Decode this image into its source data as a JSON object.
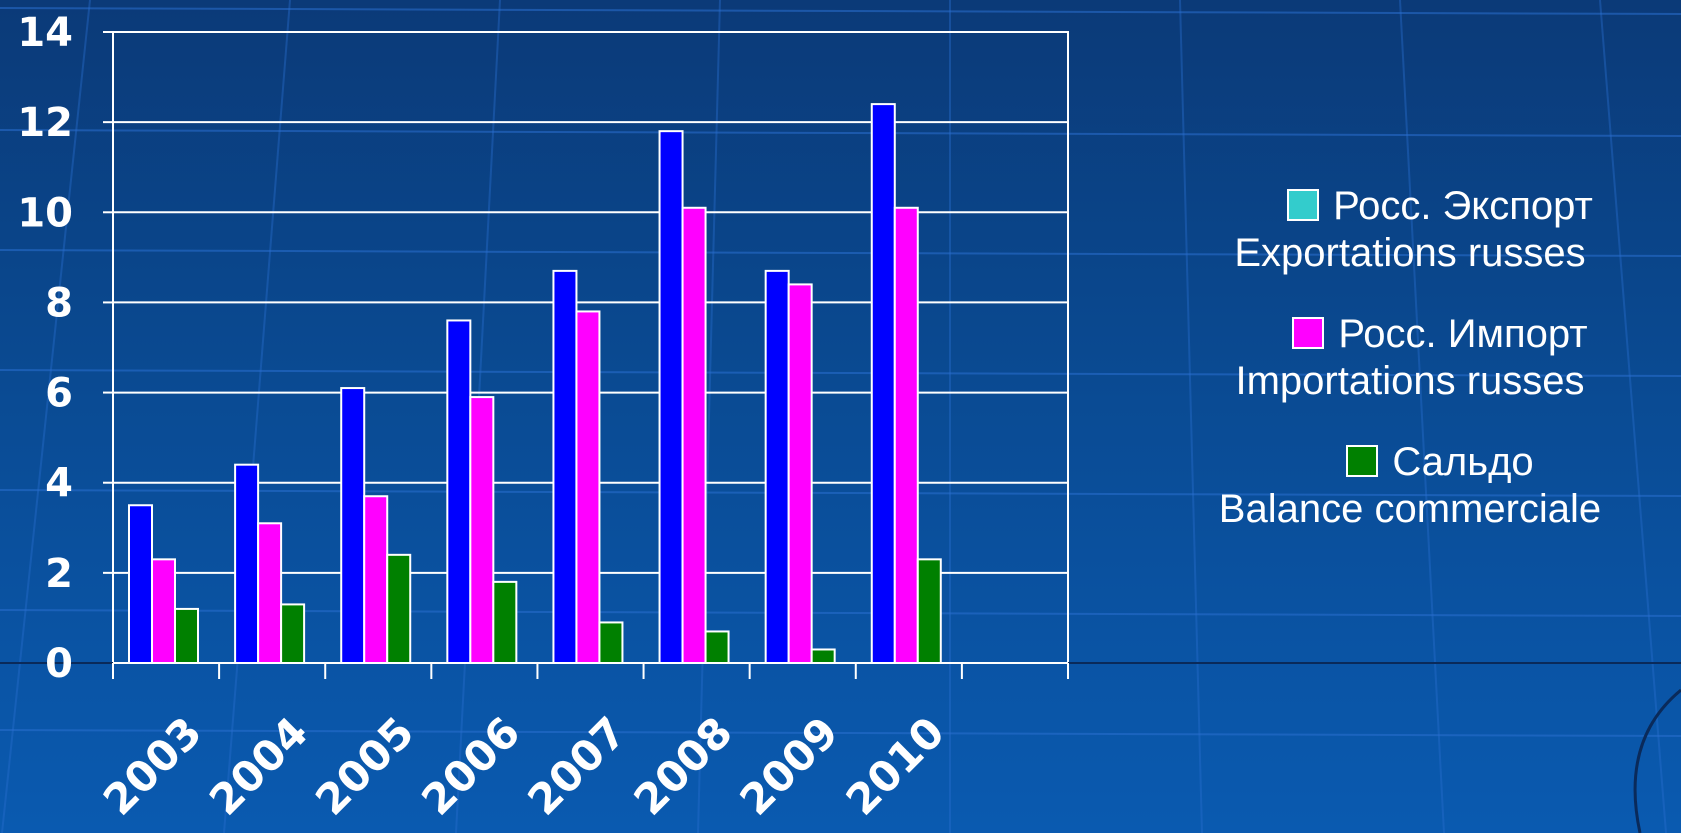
{
  "chart_data": {
    "type": "bar",
    "categories": [
      "2003",
      "2004",
      "2005",
      "2006",
      "2007",
      "2008",
      "2009",
      "2010"
    ],
    "series": [
      {
        "name": "Росс. Экспорт",
        "name_fr": "Exportations russes",
        "color": "#0000ff",
        "legend_color": "#33cccc",
        "values": [
          3.5,
          4.4,
          6.1,
          7.6,
          8.7,
          11.8,
          8.7,
          12.4
        ]
      },
      {
        "name": "Росс. Импорт",
        "name_fr": "Importations russes",
        "color": "#ff00ff",
        "legend_color": "#ff00ff",
        "values": [
          2.3,
          3.1,
          3.7,
          5.9,
          7.8,
          10.1,
          8.4,
          10.1
        ]
      },
      {
        "name": "Сальдо",
        "name_fr": "Balance commerciale",
        "color": "#008000",
        "legend_color": "#008000",
        "values": [
          1.2,
          1.3,
          2.4,
          1.8,
          0.9,
          0.7,
          0.3,
          2.3
        ]
      }
    ],
    "ylim": [
      0,
      14
    ],
    "yticks": [
      "0",
      "2",
      "4",
      "6",
      "8",
      "10",
      "12",
      "14"
    ],
    "grid": true,
    "legend_position": "right",
    "title": "",
    "xlabel": "",
    "ylabel": ""
  }
}
